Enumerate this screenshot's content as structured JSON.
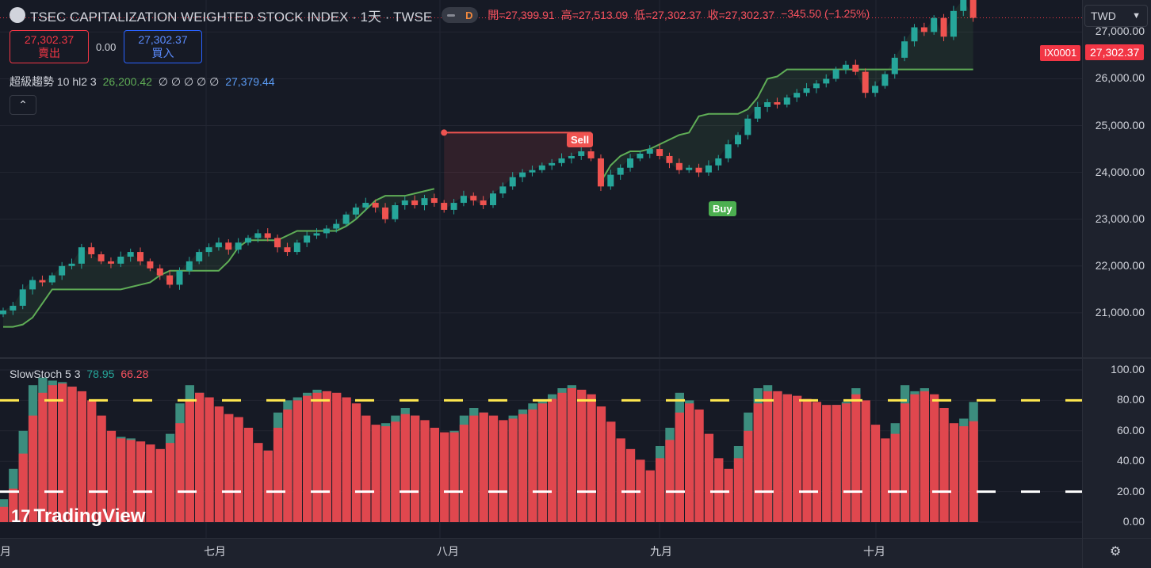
{
  "header": {
    "title": "TSEC CAPITALIZATION WEIGHTED STOCK INDEX · 1天 · TWSE",
    "market_status": "D",
    "open": "開=27,399.91",
    "high": "高=27,513.09",
    "low": "低=27,302.37",
    "close": "收=27,302.37",
    "change": "−345.50 (−1.25%)"
  },
  "trade": {
    "sell_price": "27,302.37",
    "sell_label": "賣出",
    "spread": "0.00",
    "buy_price": "27,302.37",
    "buy_label": "買入"
  },
  "supertrend": {
    "name": "超級趨勢 10 hl2 3",
    "value1": "26,200.42",
    "placeholders": "∅ ∅ ∅ ∅ ∅",
    "value2": "27,379.44"
  },
  "stoch": {
    "name": "SlowStoch 5 3",
    "k": "78.95",
    "d": "66.28"
  },
  "price_axis": {
    "ticks": [
      "27,000.00",
      "26,000.00",
      "25,000.00",
      "24,000.00",
      "23,000.00",
      "22,000.00",
      "21,000.00"
    ],
    "symbol_tag": "IX0001",
    "last_price": "27,302.37",
    "currency": "TWD"
  },
  "stoch_axis": {
    "ticks": [
      "100.00",
      "80.00",
      "60.00",
      "40.00",
      "20.00",
      "0.00"
    ]
  },
  "time_axis": {
    "labels": [
      "月",
      "七月",
      "八月",
      "九月",
      "十月"
    ]
  },
  "signals": {
    "sell": "Sell",
    "buy": "Buy"
  },
  "branding": "TradingView",
  "colors": {
    "up": "#26a69a",
    "down": "#ef5350",
    "supertrend": "#5fad56"
  },
  "chart_data": [
    {
      "type": "candlestick",
      "title": "TSEC CAPITALIZATION WEIGHTED STOCK INDEX · 1天 · TWSE",
      "x_labels": [
        "月",
        "七月",
        "八月",
        "九月",
        "十月"
      ],
      "ylim": [
        20050,
        27650
      ],
      "close": [
        21050,
        21150,
        21500,
        21700,
        21650,
        21800,
        22000,
        22050,
        22400,
        22250,
        22100,
        22050,
        22200,
        22300,
        22100,
        21950,
        21800,
        21600,
        21900,
        22100,
        22300,
        22400,
        22500,
        22350,
        22500,
        22600,
        22700,
        22600,
        22400,
        22300,
        22500,
        22650,
        22700,
        22800,
        22900,
        23100,
        23250,
        23350,
        23250,
        23000,
        23300,
        23400,
        23300,
        23450,
        23350,
        23200,
        23350,
        23500,
        23400,
        23300,
        23550,
        23700,
        23900,
        24000,
        24050,
        24150,
        24200,
        24300,
        24350,
        24450,
        24300,
        23700,
        23950,
        24100,
        24300,
        24400,
        24500,
        24350,
        24200,
        24050,
        24100,
        24000,
        24150,
        24300,
        24600,
        24800,
        25150,
        25400,
        25500,
        25450,
        25600,
        25700,
        25800,
        25900,
        26000,
        26200,
        26300,
        26150,
        25700,
        25850,
        26100,
        26450,
        26800,
        27100,
        27000,
        27300,
        26900,
        27450,
        27700,
        27302.37
      ],
      "supertrend": [
        20700,
        20700,
        20750,
        20900,
        21200,
        21500,
        21500,
        21500,
        21500,
        21500,
        21500,
        21500,
        21500,
        21550,
        21600,
        21650,
        21800,
        21900,
        21900,
        21900,
        21900,
        21900,
        21900,
        22100,
        22400,
        22550,
        22550,
        22550,
        22550,
        22650,
        22750,
        22750,
        22750,
        22750,
        22750,
        22850,
        23000,
        23200,
        23400,
        23500,
        23500,
        23500,
        23550,
        23600,
        23650,
        null,
        null,
        null,
        null,
        null,
        null,
        null,
        null,
        null,
        null,
        null,
        null,
        null,
        null,
        null,
        null,
        23800,
        24150,
        24350,
        24450,
        24450,
        24500,
        24600,
        24700,
        24800,
        24850,
        25200,
        25250,
        25250,
        25250,
        25250,
        25350,
        25600,
        26000,
        26050,
        26200,
        26200,
        26200,
        26200,
        26200,
        26200,
        26200,
        26200,
        26200,
        26200,
        26200,
        26200,
        26200,
        26200,
        26200,
        26200,
        26200,
        26200,
        26200,
        26200
      ],
      "sell_resistance": 24850,
      "signals": [
        {
          "label": "Sell",
          "type": "sell"
        },
        {
          "label": "Buy",
          "type": "buy"
        }
      ]
    },
    {
      "type": "bar",
      "title": "SlowStoch 5 3",
      "ylim": [
        0,
        100
      ],
      "levels": [
        80,
        20
      ],
      "k": [
        15,
        35,
        60,
        90,
        95,
        93,
        92,
        89,
        85,
        73,
        60,
        55,
        56,
        55,
        52,
        49,
        47,
        58,
        78,
        90,
        85,
        80,
        72,
        70,
        68,
        58,
        48,
        47,
        72,
        80,
        82,
        85,
        87,
        86,
        84,
        80,
        75,
        65,
        62,
        65,
        70,
        75,
        70,
        65,
        60,
        58,
        60,
        70,
        75,
        72,
        68,
        66,
        70,
        74,
        78,
        80,
        84,
        88,
        90,
        86,
        82,
        70,
        60,
        50,
        45,
        38,
        32,
        50,
        62,
        85,
        80,
        70,
        48,
        35,
        33,
        50,
        72,
        88,
        90,
        86,
        84,
        82,
        80,
        78,
        76,
        77,
        79,
        88,
        75,
        55,
        50,
        65,
        90,
        86,
        88,
        82,
        70,
        60,
        68,
        78.95
      ],
      "d": [
        10,
        22,
        45,
        70,
        85,
        90,
        91,
        89,
        86,
        80,
        70,
        60,
        55,
        54,
        53,
        51,
        48,
        52,
        65,
        80,
        85,
        82,
        76,
        71,
        69,
        62,
        52,
        47,
        62,
        74,
        80,
        83,
        85,
        86,
        85,
        82,
        78,
        70,
        64,
        63,
        66,
        71,
        70,
        67,
        62,
        59,
        59,
        64,
        70,
        72,
        70,
        67,
        68,
        71,
        74,
        78,
        81,
        85,
        88,
        87,
        84,
        76,
        66,
        55,
        48,
        41,
        34,
        42,
        54,
        72,
        78,
        74,
        58,
        42,
        35,
        42,
        60,
        78,
        86,
        86,
        84,
        83,
        81,
        79,
        77,
        77,
        78,
        84,
        80,
        64,
        55,
        58,
        78,
        84,
        86,
        84,
        75,
        65,
        63,
        66.28
      ]
    }
  ]
}
